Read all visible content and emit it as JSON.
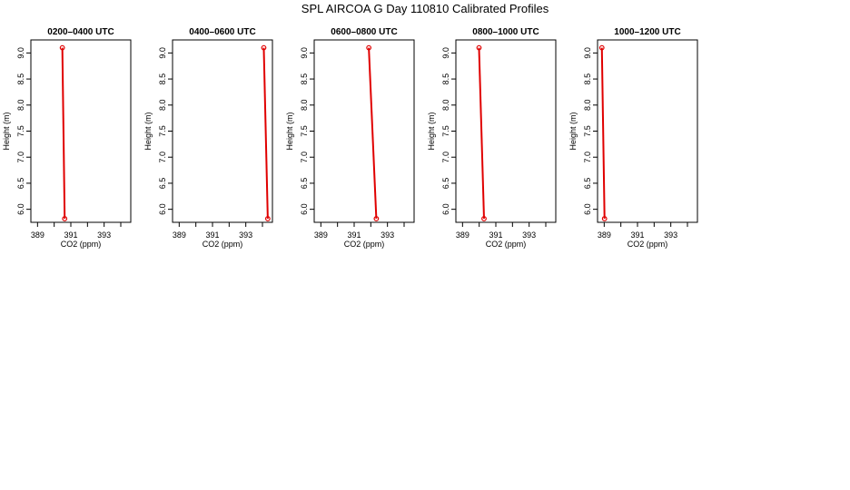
{
  "figure": {
    "title": "SPL AIRCOA G  Day 110810  Calibrated Profiles"
  },
  "chart_data": [
    {
      "type": "line",
      "title": "0200–0400 UTC",
      "xlabel": "CO2 (ppm)",
      "ylabel": "Height (m)",
      "xlim": [
        388.6,
        394.6
      ],
      "ylim": [
        5.75,
        9.25
      ],
      "x_ticks": [
        389,
        390,
        391,
        392,
        393,
        394
      ],
      "x_tick_labels": [
        "389",
        "391",
        "393"
      ],
      "y_ticks": [
        6.0,
        6.5,
        7.0,
        7.5,
        8.0,
        8.5,
        9.0
      ],
      "y_tick_labels": [
        "6.0",
        "6.5",
        "7.0",
        "7.5",
        "8.0",
        "8.5",
        "9.0"
      ],
      "series": [
        {
          "x": [
            390.49,
            390.63
          ],
          "y": [
            9.1,
            5.82
          ]
        }
      ],
      "color": "#e00000"
    },
    {
      "type": "line",
      "title": "0400–0600 UTC",
      "xlabel": "CO2 (ppm)",
      "ylabel": "Height (m)",
      "xlim": [
        388.6,
        394.6
      ],
      "ylim": [
        5.75,
        9.25
      ],
      "x_ticks": [
        389,
        390,
        391,
        392,
        393,
        394
      ],
      "x_tick_labels": [
        "389",
        "391",
        "393"
      ],
      "y_ticks": [
        6.0,
        6.5,
        7.0,
        7.5,
        8.0,
        8.5,
        9.0
      ],
      "y_tick_labels": [
        "6.0",
        "6.5",
        "7.0",
        "7.5",
        "8.0",
        "8.5",
        "9.0"
      ],
      "series": [
        {
          "x": [
            394.08,
            394.32
          ],
          "y": [
            9.1,
            5.82
          ]
        }
      ],
      "color": "#e00000"
    },
    {
      "type": "line",
      "title": "0600–0800 UTC",
      "xlabel": "CO2 (ppm)",
      "ylabel": "Height (m)",
      "xlim": [
        388.6,
        394.6
      ],
      "ylim": [
        5.75,
        9.25
      ],
      "x_ticks": [
        389,
        390,
        391,
        392,
        393,
        394
      ],
      "x_tick_labels": [
        "389",
        "391",
        "393"
      ],
      "y_ticks": [
        6.0,
        6.5,
        7.0,
        7.5,
        8.0,
        8.5,
        9.0
      ],
      "y_tick_labels": [
        "6.0",
        "6.5",
        "7.0",
        "7.5",
        "8.0",
        "8.5",
        "9.0"
      ],
      "series": [
        {
          "x": [
            391.88,
            392.33
          ],
          "y": [
            9.1,
            5.82
          ]
        }
      ],
      "color": "#e00000"
    },
    {
      "type": "line",
      "title": "0800–1000 UTC",
      "xlabel": "CO2 (ppm)",
      "ylabel": "Height (m)",
      "xlim": [
        388.6,
        394.6
      ],
      "ylim": [
        5.75,
        9.25
      ],
      "x_ticks": [
        389,
        390,
        391,
        392,
        393,
        394
      ],
      "x_tick_labels": [
        "389",
        "391",
        "393"
      ],
      "y_ticks": [
        6.0,
        6.5,
        7.0,
        7.5,
        8.0,
        8.5,
        9.0
      ],
      "y_tick_labels": [
        "6.0",
        "6.5",
        "7.0",
        "7.5",
        "8.0",
        "8.5",
        "9.0"
      ],
      "series": [
        {
          "x": [
            389.99,
            390.29
          ],
          "y": [
            9.1,
            5.82
          ]
        }
      ],
      "color": "#e00000"
    },
    {
      "type": "line",
      "title": "1000–1200 UTC",
      "xlabel": "CO2 (ppm)",
      "ylabel": "Height (m)",
      "xlim": [
        388.6,
        394.6
      ],
      "ylim": [
        5.75,
        9.25
      ],
      "x_ticks": [
        389,
        390,
        391,
        392,
        393,
        394
      ],
      "x_tick_labels": [
        "389",
        "391",
        "393"
      ],
      "y_ticks": [
        6.0,
        6.5,
        7.0,
        7.5,
        8.0,
        8.5,
        9.0
      ],
      "y_tick_labels": [
        "6.0",
        "6.5",
        "7.0",
        "7.5",
        "8.0",
        "8.5",
        "9.0"
      ],
      "series": [
        {
          "x": [
            388.86,
            389.02
          ],
          "y": [
            9.1,
            5.82
          ]
        }
      ],
      "color": "#e00000"
    }
  ]
}
